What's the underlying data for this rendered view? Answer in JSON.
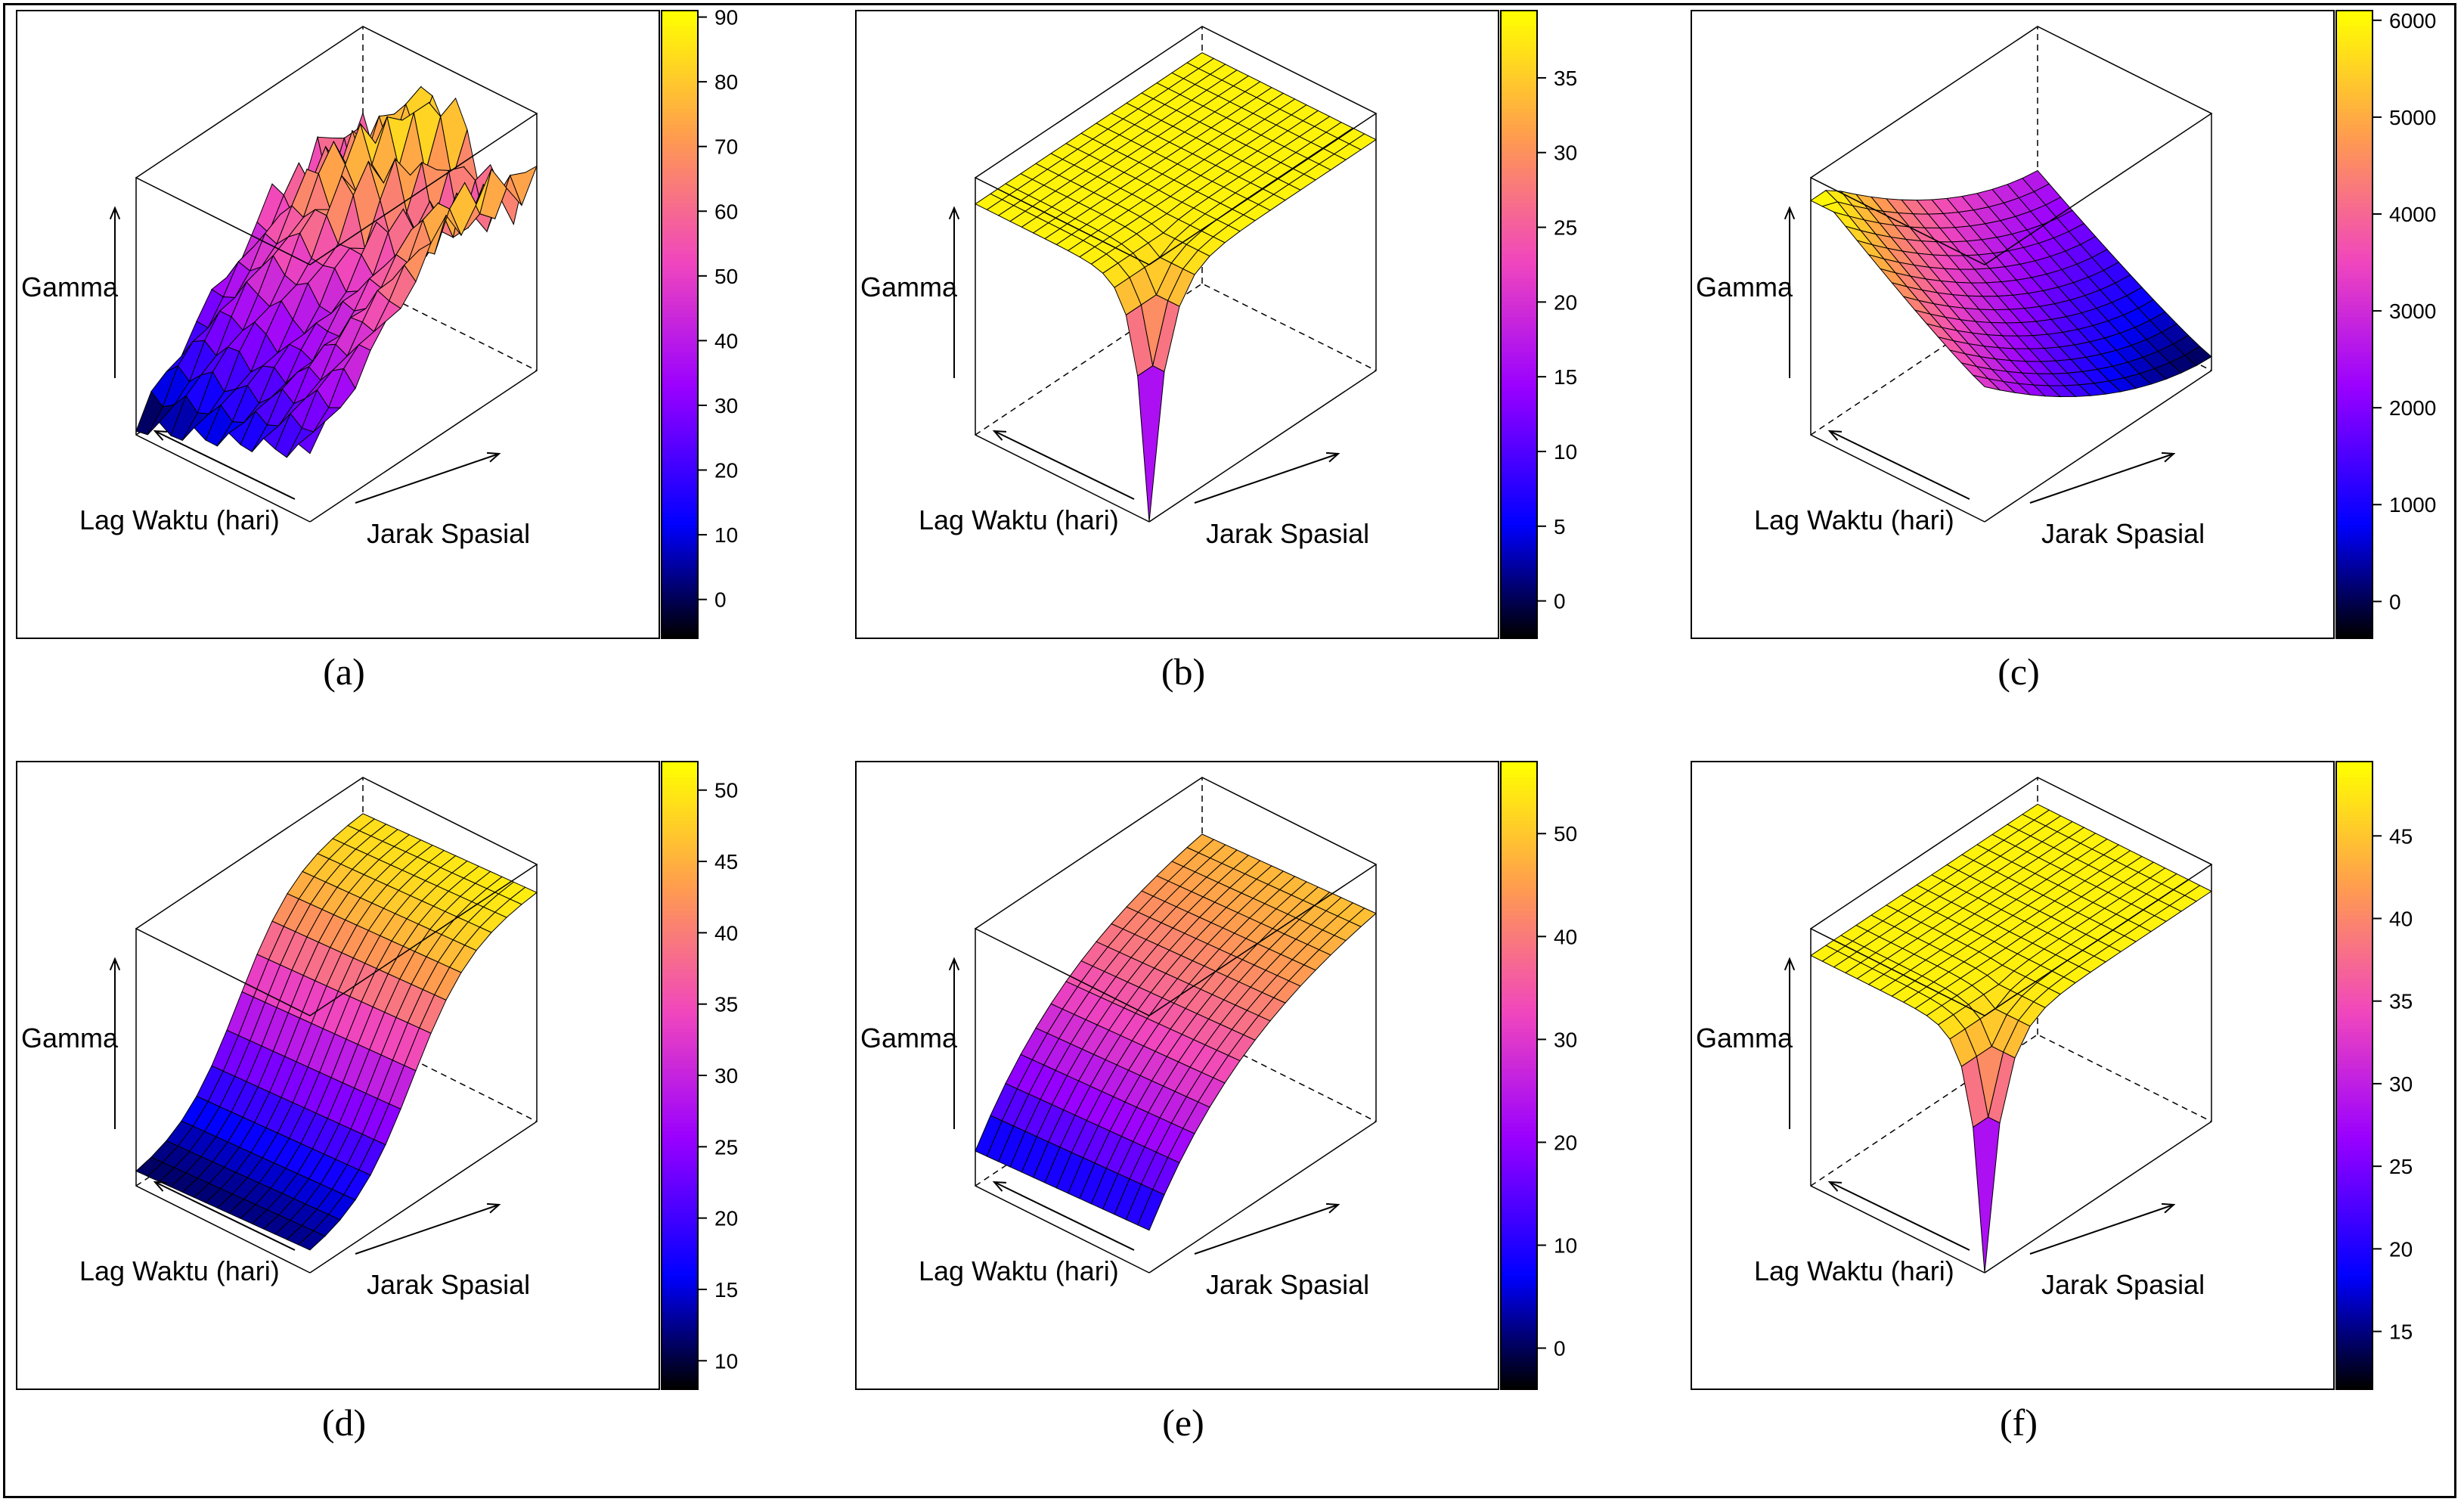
{
  "figure": {
    "axis_labels": {
      "z": "Gamma",
      "x": "Lag Waktu (hari)",
      "y": "Jarak Spasial"
    }
  },
  "chart_data": [
    {
      "id": "a",
      "caption": "(a)",
      "type": "surface3d",
      "xlabel": "Lag Waktu (hari)",
      "ylabel": "Jarak Spasial",
      "zlabel": "Gamma",
      "shape": "empirical",
      "zmin": -6,
      "zmax": 91,
      "colorbar": {
        "ticks": [
          0,
          10,
          20,
          30,
          40,
          50,
          60,
          70,
          80,
          90
        ],
        "range": [
          -6,
          91
        ]
      }
    },
    {
      "id": "b",
      "caption": "(b)",
      "type": "surface3d",
      "xlabel": "Lag Waktu (hari)",
      "ylabel": "Jarak Spasial",
      "zlabel": "Gamma",
      "shape": "spike",
      "zmin": -2.5,
      "zmax": 39.5,
      "zplateau": 38.5,
      "colorbar": {
        "ticks": [
          0,
          5,
          10,
          15,
          20,
          25,
          30,
          35
        ],
        "range": [
          -2.5,
          39.5
        ]
      }
    },
    {
      "id": "c",
      "caption": "(c)",
      "type": "surface3d",
      "xlabel": "Lag Waktu (hari)",
      "ylabel": "Jarak Spasial",
      "zlabel": "Gamma",
      "shape": "bowl",
      "zmin": -380,
      "zmax": 6100,
      "colorbar": {
        "ticks": [
          0,
          1000,
          2000,
          3000,
          4000,
          5000,
          6000
        ],
        "range": [
          -380,
          6100
        ]
      }
    },
    {
      "id": "d",
      "caption": "(d)",
      "type": "surface3d",
      "xlabel": "Lag Waktu (hari)",
      "ylabel": "Jarak Spasial",
      "zlabel": "Gamma",
      "shape": "sigmoid",
      "zmin": 8,
      "zmax": 52,
      "colorbar": {
        "ticks": [
          10,
          15,
          20,
          25,
          30,
          35,
          40,
          45,
          50
        ],
        "range": [
          8,
          52
        ]
      }
    },
    {
      "id": "e",
      "caption": "(e)",
      "type": "surface3d",
      "xlabel": "Lag Waktu (hari)",
      "ylabel": "Jarak Spasial",
      "zlabel": "Gamma",
      "shape": "exponential",
      "zmin": -4,
      "zmax": 57,
      "colorbar": {
        "ticks": [
          0,
          10,
          20,
          30,
          40,
          50
        ],
        "range": [
          -4,
          57
        ]
      }
    },
    {
      "id": "f",
      "caption": "(f)",
      "type": "surface3d",
      "xlabel": "Lag Waktu (hari)",
      "ylabel": "Jarak Spasial",
      "zlabel": "Gamma",
      "shape": "spike",
      "zmin": 11.5,
      "zmax": 49.5,
      "zplateau": 48.5,
      "colorbar": {
        "ticks": [
          15,
          20,
          25,
          30,
          35,
          40,
          45
        ],
        "range": [
          11.5,
          49.5
        ]
      }
    }
  ]
}
